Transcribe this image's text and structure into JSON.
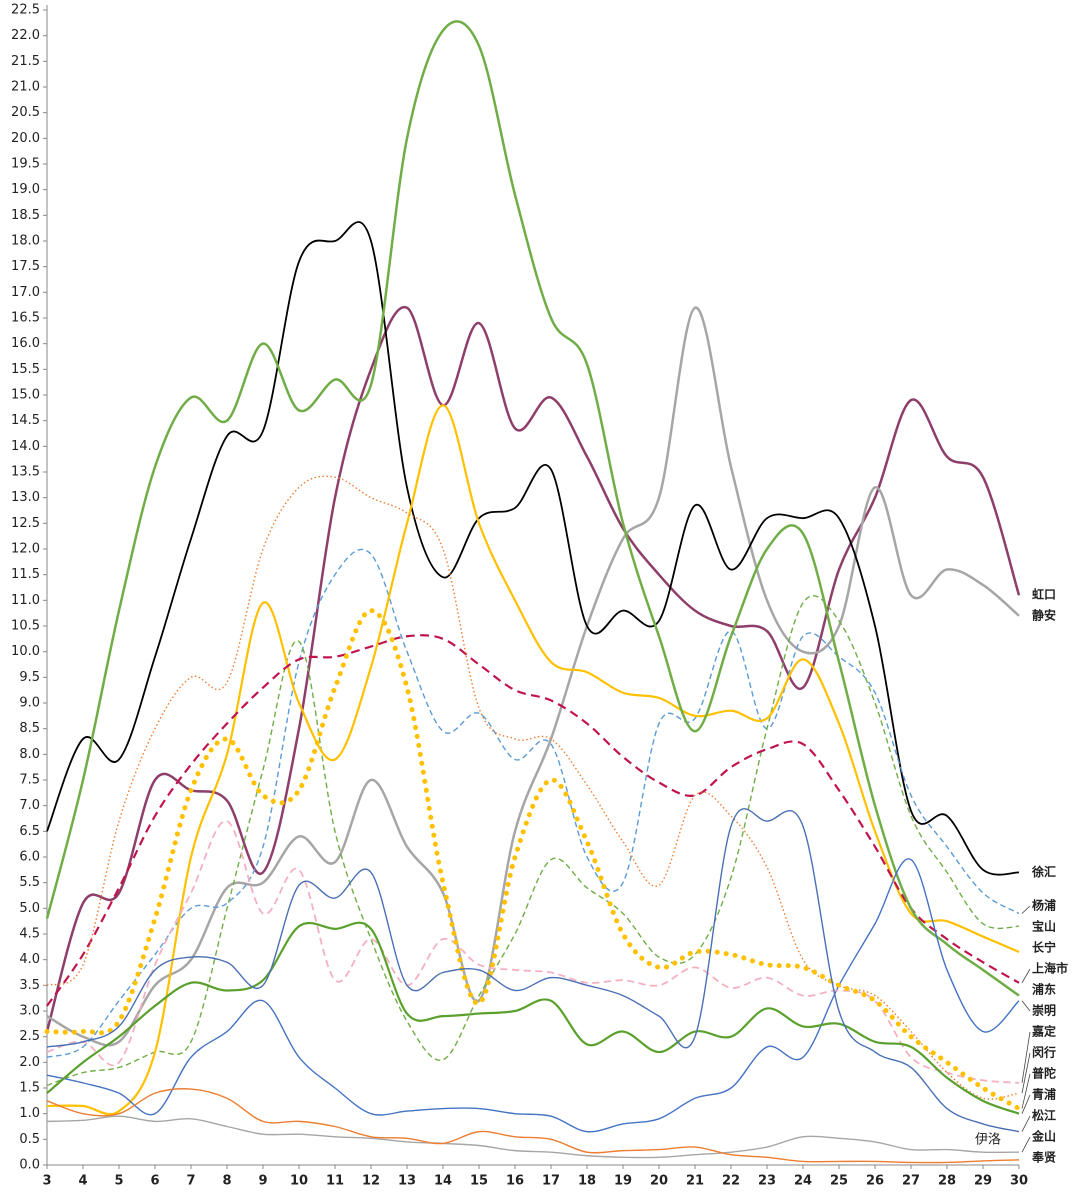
{
  "chart_data": {
    "type": "line",
    "x": [
      3,
      4,
      5,
      6,
      7,
      8,
      9,
      10,
      11,
      12,
      13,
      14,
      15,
      16,
      17,
      18,
      19,
      20,
      21,
      22,
      23,
      24,
      25,
      26,
      27,
      28,
      29,
      30
    ],
    "xlim": [
      3,
      30
    ],
    "xticks": [
      3,
      4,
      5,
      6,
      7,
      8,
      9,
      10,
      11,
      12,
      13,
      14,
      15,
      16,
      17,
      18,
      19,
      20,
      21,
      22,
      23,
      24,
      25,
      26,
      27,
      28,
      29,
      30
    ],
    "ylim": [
      0,
      22.5
    ],
    "yticks": [
      {
        "value": 0,
        "label": "0.0"
      },
      0.5,
      {
        "value": 1,
        "label": "1.0"
      },
      1.5,
      {
        "value": 2,
        "label": "2.0"
      },
      2.5,
      {
        "value": 3,
        "label": "3.0"
      },
      3.5,
      {
        "value": 4,
        "label": "4.0"
      },
      4.5,
      {
        "value": 5,
        "label": "5.0"
      },
      5.5,
      {
        "value": 6,
        "label": "6.0"
      },
      6.5,
      {
        "value": 7,
        "label": "7.0"
      },
      7.5,
      {
        "value": 8,
        "label": "8.0"
      },
      8.5,
      {
        "value": 9,
        "label": "9.0"
      },
      9.5,
      {
        "value": 10,
        "label": "10.0"
      },
      10.5,
      {
        "value": 11,
        "label": "11.0"
      },
      11.5,
      {
        "value": 12,
        "label": "12.0"
      },
      12.5,
      {
        "value": 13,
        "label": "13.0"
      },
      13.5,
      {
        "value": 14,
        "label": "14.0"
      },
      14.5,
      {
        "value": 15,
        "label": "15.0"
      },
      15.5,
      {
        "value": 16,
        "label": "16.0"
      },
      16.5,
      {
        "value": 17,
        "label": "17.0"
      },
      17.5,
      {
        "value": 18,
        "label": "18.0"
      },
      18.5,
      {
        "value": 19,
        "label": "19.0"
      },
      19.5,
      {
        "value": 20,
        "label": "20.0"
      },
      20.5,
      {
        "value": 21,
        "label": "21.0"
      },
      21.5,
      {
        "value": 22,
        "label": "22.0"
      },
      22.5
    ],
    "grid": false,
    "watermark": "伊洛",
    "series": [
      {
        "name": "虹口",
        "color": "#8e3e6a",
        "style": "solid",
        "line_width": 2.5,
        "values": [
          2.6,
          5.1,
          5.3,
          7.5,
          7.3,
          7.1,
          5.7,
          8.5,
          13.0,
          15.5,
          16.7,
          14.8,
          16.4,
          14.35,
          14.95,
          13.8,
          12.4,
          11.5,
          10.8,
          10.5,
          10.4,
          9.3,
          11.6,
          13.0,
          14.9,
          13.8,
          13.4,
          11.1
        ]
      },
      {
        "name": "静安",
        "color": "#a6a6a6",
        "style": "solid",
        "line_width": 2.5,
        "values": [
          2.9,
          2.5,
          2.4,
          3.5,
          4.0,
          5.4,
          5.5,
          6.4,
          5.9,
          7.5,
          6.2,
          5.3,
          3.2,
          6.5,
          8.3,
          10.5,
          12.2,
          13.0,
          16.7,
          13.6,
          11.0,
          10.0,
          10.5,
          13.2,
          11.1,
          11.6,
          11.3,
          10.7
        ]
      },
      {
        "name": "徐汇",
        "color": "#000000",
        "style": "solid",
        "line_width": 1.8,
        "values": [
          6.5,
          8.3,
          7.9,
          9.9,
          12.2,
          14.2,
          14.3,
          17.6,
          18.0,
          18.0,
          13.2,
          11.45,
          12.6,
          12.8,
          13.55,
          10.5,
          10.8,
          10.6,
          12.85,
          11.6,
          12.6,
          12.6,
          12.6,
          10.5,
          6.9,
          6.8,
          5.75,
          5.7
        ]
      },
      {
        "name": "杨浦",
        "color": "#5b9bd5",
        "style": "dashed",
        "line_width": 1.4,
        "values": [
          2.1,
          2.3,
          3.2,
          4.1,
          5.0,
          5.1,
          6.2,
          9.8,
          11.5,
          11.9,
          10.0,
          8.45,
          8.8,
          7.9,
          8.2,
          6.0,
          5.5,
          8.6,
          8.7,
          10.4,
          8.5,
          10.3,
          9.9,
          9.2,
          7.2,
          6.2,
          5.3,
          4.9
        ]
      },
      {
        "name": "宝山",
        "color": "#70ad47",
        "style": "dashed",
        "line_width": 1.4,
        "values": [
          1.55,
          1.8,
          1.9,
          2.2,
          2.4,
          5.0,
          7.7,
          10.2,
          6.5,
          4.4,
          2.8,
          2.05,
          3.3,
          4.5,
          5.95,
          5.4,
          4.9,
          4.05,
          4.1,
          5.6,
          8.5,
          10.95,
          10.6,
          9.0,
          6.8,
          5.7,
          4.7,
          4.65
        ]
      },
      {
        "name": "长宁",
        "color": "#ffc000",
        "style": "solid",
        "line_width": 2.2,
        "values": [
          1.15,
          1.15,
          1.05,
          2.2,
          6.0,
          8.0,
          10.95,
          9.0,
          7.9,
          9.7,
          12.5,
          14.8,
          12.5,
          11.0,
          9.8,
          9.6,
          9.2,
          9.1,
          8.75,
          8.85,
          8.7,
          9.85,
          8.6,
          6.5,
          4.9,
          4.75,
          4.45,
          4.15
        ]
      },
      {
        "name": "上海市",
        "color": "#c0144c",
        "style": "dashed",
        "line_width": 2.2,
        "values": [
          3.1,
          4.1,
          5.4,
          6.8,
          7.8,
          8.6,
          9.3,
          9.85,
          9.9,
          10.1,
          10.3,
          10.25,
          9.75,
          9.25,
          9.05,
          8.6,
          7.95,
          7.45,
          7.2,
          7.75,
          8.1,
          8.2,
          7.3,
          6.2,
          5.0,
          4.4,
          3.95,
          3.55
        ]
      },
      {
        "name": "浦东",
        "color": "#70ad47",
        "style": "solid",
        "line_width": 2.5,
        "values": [
          4.8,
          7.5,
          10.8,
          13.6,
          14.95,
          14.5,
          16.0,
          14.7,
          15.3,
          15.2,
          20.0,
          22.1,
          21.8,
          18.9,
          16.5,
          15.6,
          12.5,
          10.3,
          8.45,
          10.3,
          12.0,
          12.3,
          9.8,
          7.0,
          5.0,
          4.3,
          3.8,
          3.3
        ]
      },
      {
        "name": "崇明",
        "color": "#4472c4",
        "style": "solid",
        "line_width": 1.4,
        "values": [
          1.75,
          1.6,
          1.4,
          1.0,
          2.1,
          2.6,
          3.2,
          2.1,
          1.5,
          1.0,
          1.05,
          1.1,
          1.1,
          1.0,
          0.95,
          0.65,
          0.8,
          0.9,
          1.3,
          1.5,
          2.3,
          2.1,
          3.5,
          4.7,
          5.95,
          3.8,
          2.6,
          3.2
        ]
      },
      {
        "name": "嘉定",
        "color": "#f4b0c0",
        "style": "dashed",
        "line_width": 1.8,
        "values": [
          2.2,
          2.4,
          2.0,
          3.9,
          5.3,
          6.7,
          4.9,
          5.75,
          3.6,
          4.4,
          3.5,
          4.4,
          3.9,
          3.8,
          3.75,
          3.55,
          3.6,
          3.5,
          3.85,
          3.45,
          3.65,
          3.3,
          3.4,
          3.2,
          2.1,
          1.8,
          1.65,
          1.6
        ]
      },
      {
        "name": "闵行",
        "color": "#ed7d31",
        "style": "dotted",
        "line_width": 1.4,
        "values": [
          3.5,
          3.9,
          6.7,
          8.5,
          9.5,
          9.4,
          12.0,
          13.2,
          13.4,
          13.0,
          12.7,
          12.0,
          8.9,
          8.3,
          8.3,
          7.4,
          6.3,
          5.45,
          7.2,
          6.8,
          5.8,
          4.0,
          3.5,
          3.3,
          2.6,
          1.8,
          1.3,
          1.4
        ]
      },
      {
        "name": "普陀",
        "color": "#ffc000",
        "style": "dotted",
        "line_width": 5,
        "values": [
          2.6,
          2.6,
          2.8,
          4.8,
          7.3,
          8.3,
          7.2,
          7.3,
          9.3,
          10.8,
          9.3,
          5.5,
          3.15,
          6.0,
          7.5,
          6.3,
          4.5,
          3.85,
          4.15,
          4.1,
          3.9,
          3.85,
          3.5,
          3.2,
          2.5,
          2.0,
          1.5,
          1.1
        ]
      },
      {
        "name": "青浦",
        "color": "#5aa02c",
        "style": "solid",
        "line_width": 2.2,
        "values": [
          1.4,
          2.0,
          2.5,
          3.1,
          3.55,
          3.4,
          3.6,
          4.65,
          4.6,
          4.6,
          2.95,
          2.9,
          2.95,
          3.0,
          3.2,
          2.35,
          2.6,
          2.2,
          2.6,
          2.5,
          3.05,
          2.7,
          2.75,
          2.4,
          2.3,
          1.7,
          1.25,
          1.0
        ]
      },
      {
        "name": "松江",
        "color": "#4a6fb5",
        "style": "solid",
        "line_width": 1.4,
        "values": [
          2.3,
          2.4,
          2.7,
          3.8,
          4.05,
          3.95,
          3.5,
          5.45,
          5.2,
          5.7,
          3.5,
          3.75,
          3.8,
          3.4,
          3.65,
          3.5,
          3.3,
          2.9,
          2.5,
          6.6,
          6.7,
          6.6,
          3.0,
          2.2,
          1.9,
          1.1,
          0.8,
          0.65
        ]
      },
      {
        "name": "金山",
        "color": "#a6a6a6",
        "style": "solid",
        "line_width": 1.4,
        "values": [
          0.85,
          0.87,
          0.95,
          0.85,
          0.9,
          0.75,
          0.6,
          0.6,
          0.55,
          0.52,
          0.45,
          0.42,
          0.38,
          0.28,
          0.25,
          0.18,
          0.15,
          0.15,
          0.2,
          0.25,
          0.35,
          0.55,
          0.52,
          0.45,
          0.3,
          0.3,
          0.25,
          0.25
        ]
      },
      {
        "name": "奉贤",
        "color": "#ed7d31",
        "style": "solid",
        "line_width": 1.4,
        "values": [
          1.25,
          1.0,
          1.0,
          1.4,
          1.48,
          1.3,
          0.85,
          0.85,
          0.75,
          0.55,
          0.52,
          0.42,
          0.65,
          0.55,
          0.5,
          0.25,
          0.28,
          0.3,
          0.35,
          0.2,
          0.15,
          0.07,
          0.07,
          0.07,
          0.05,
          0.05,
          0.08,
          0.1
        ]
      }
    ]
  }
}
